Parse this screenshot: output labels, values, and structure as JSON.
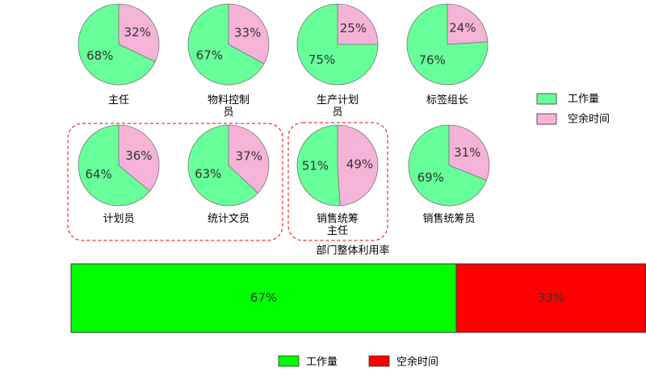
{
  "pie_legend": {
    "labels": [
      "工作量",
      "空余时间"
    ],
    "colors": [
      "#66ff99",
      "#f5b3d8"
    ]
  },
  "chart_data": [
    {
      "type": "pie",
      "title": "主任",
      "values": [
        68,
        32
      ],
      "value_labels": [
        "68%",
        "32%"
      ]
    },
    {
      "type": "pie",
      "title": "物料控制员",
      "values": [
        67,
        33
      ],
      "value_labels": [
        "67%",
        "33%"
      ]
    },
    {
      "type": "pie",
      "title": "生产计划员",
      "values": [
        75,
        25
      ],
      "value_labels": [
        "75%",
        "25%"
      ]
    },
    {
      "type": "pie",
      "title": "标签组长",
      "values": [
        76,
        24
      ],
      "value_labels": [
        "76%",
        "24%"
      ]
    },
    {
      "type": "pie",
      "title": "计划员",
      "values": [
        64,
        36
      ],
      "value_labels": [
        "64%",
        "36%"
      ]
    },
    {
      "type": "pie",
      "title": "统计文员",
      "values": [
        63,
        37
      ],
      "value_labels": [
        "63%",
        "37%"
      ]
    },
    {
      "type": "pie",
      "title": "销售统筹主任",
      "values": [
        51,
        49
      ],
      "value_labels": [
        "51%",
        "49%"
      ]
    },
    {
      "type": "pie",
      "title": "销售统筹员",
      "values": [
        69,
        31
      ],
      "value_labels": [
        "69%",
        "31%"
      ]
    },
    {
      "type": "bar",
      "title": "部门整体利用率",
      "stacked": true,
      "series": [
        {
          "name": "工作量",
          "color": "#00ff00",
          "values": [
            67
          ],
          "value_labels": [
            "67%"
          ]
        },
        {
          "name": "空余时间",
          "color": "#ff0000",
          "values": [
            33
          ],
          "value_labels": [
            "33%"
          ]
        }
      ]
    }
  ]
}
